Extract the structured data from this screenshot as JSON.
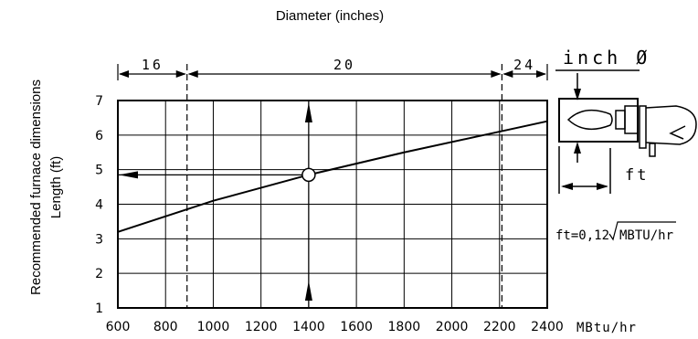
{
  "chart_data": {
    "type": "line",
    "title": "Diameter (inches)",
    "ylabel_line1": "Recommended furnace dimensions",
    "ylabel_line2": "Length (ft)",
    "xlabel": "MBtu/hr",
    "xlim": [
      600,
      2400
    ],
    "ylim": [
      1,
      7
    ],
    "x_ticks": [
      "600",
      "800",
      "1000",
      "1200",
      "1400",
      "1600",
      "1800",
      "2000",
      "2200",
      "2400"
    ],
    "y_ticks": [
      "1",
      "2",
      "3",
      "4",
      "5",
      "6",
      "7"
    ],
    "grid": true,
    "series": [
      {
        "x": [
          600,
          1000,
          1400,
          1800,
          2200,
          2400
        ],
        "y": [
          3.2,
          4.1,
          4.85,
          5.5,
          6.1,
          6.4
        ]
      }
    ],
    "diameter_bands": [
      {
        "label": "16",
        "from": 600,
        "to": 890
      },
      {
        "label": "20",
        "from": 890,
        "to": 2210
      },
      {
        "label": "24",
        "from": 2210,
        "to": 2400
      }
    ],
    "example_point": {
      "x": 1400,
      "y": 4.85
    }
  },
  "diagram": {
    "diameter_label": "inch Ø",
    "length_label": "ft",
    "formula_prefix": "ft=0,12",
    "formula_radicand": "MBTU/hr"
  }
}
